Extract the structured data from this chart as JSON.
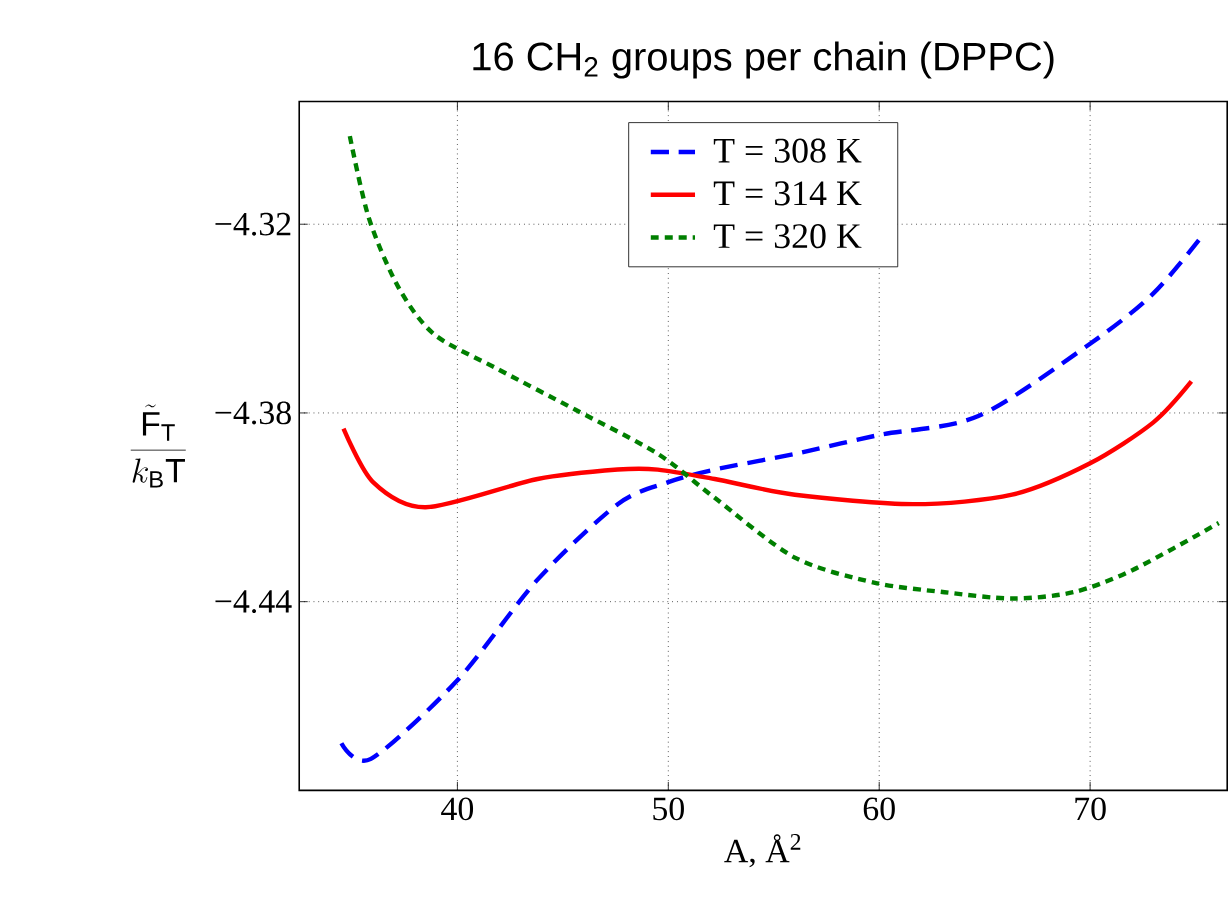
{
  "chart_data": {
    "type": "line",
    "title": "16 CH$_{2}$ groups per chain (DPPC)",
    "xlabel": "A, Å$^{2}$",
    "ylabel": "\\frac{\\tilde{\\mathrm{F}}_{\\mathrm{T}}}{k_{\\mathrm{B}}\\mathrm{T}}",
    "xlim": [
      32.5,
      76.5
    ],
    "ylim": [
      -4.5,
      -4.281
    ],
    "xticks": [
      40,
      50,
      60,
      70
    ],
    "yticks": [
      {
        "value": -4.32,
        "label": "−4.32"
      },
      {
        "value": -4.38,
        "label": "−4.38"
      },
      {
        "value": -4.44,
        "label": "−4.44"
      }
    ],
    "grid": true,
    "legend": "top",
    "marker": "none",
    "series": [
      {
        "name": "T = 308 K",
        "color": "#0000ff",
        "line_style": "dashed",
        "x": [
          34.5,
          35.9,
          40,
          43.8,
          47.6,
          50,
          52.2,
          56,
          60,
          64.7,
          70,
          73,
          75.4
        ],
        "values": [
          -4.485,
          -4.49,
          -4.465,
          -4.433,
          -4.409,
          -4.402,
          -4.398,
          -4.393,
          -4.387,
          -4.381,
          -4.358,
          -4.342,
          -4.323
        ]
      },
      {
        "name": "T = 314 K",
        "color": "#ff0000",
        "line_style": "solid",
        "x": [
          34.6,
          36.0,
          38.5,
          43.8,
          47.6,
          49.5,
          52.2,
          56,
          61.6,
          66.3,
          70,
          73,
          74.8
        ],
        "values": [
          -4.385,
          -4.402,
          -4.41,
          -4.401,
          -4.398,
          -4.398,
          -4.401,
          -4.406,
          -4.409,
          -4.406,
          -4.396,
          -4.383,
          -4.37
        ]
      },
      {
        "name": "T = 320 K",
        "color": "#007f00",
        "line_style": "dotted",
        "x": [
          34.9,
          35.8,
          37.2,
          38.9,
          41.9,
          45.6,
          49.5,
          52.2,
          56,
          59.8,
          63.1,
          66.3,
          69.2,
          72,
          76.1
        ],
        "values": [
          -4.292,
          -4.318,
          -4.34,
          -4.355,
          -4.366,
          -4.379,
          -4.393,
          -4.407,
          -4.426,
          -4.434,
          -4.437,
          -4.439,
          -4.437,
          -4.43,
          -4.415
        ]
      }
    ]
  }
}
